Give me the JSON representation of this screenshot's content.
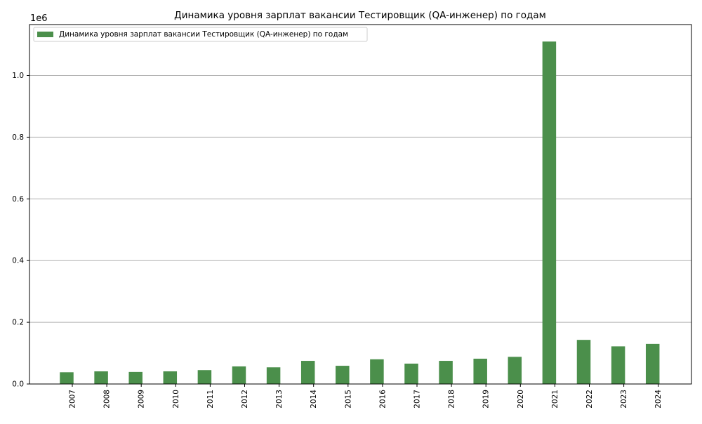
{
  "chart_data": {
    "type": "bar",
    "title": "Динамика уровня зарплат вакансии Тестировщик (QA-инженер) по годам",
    "xlabel": "",
    "ylabel": "",
    "y_scale_label": "1e6",
    "ylim": [
      0,
      1.165
    ],
    "y_ticks": [
      {
        "value": 0.0,
        "label": "0.0"
      },
      {
        "value": 0.2,
        "label": "0.2"
      },
      {
        "value": 0.4,
        "label": "0.4"
      },
      {
        "value": 0.6,
        "label": "0.6"
      },
      {
        "value": 0.8,
        "label": "0.8"
      },
      {
        "value": 1.0,
        "label": "1.0"
      }
    ],
    "grid": "horizontal",
    "legend_position": "top-left",
    "bar_color": "#4b8f4b",
    "categories": [
      "2007",
      "2008",
      "2009",
      "2010",
      "2011",
      "2012",
      "2013",
      "2014",
      "2015",
      "2016",
      "2017",
      "2018",
      "2019",
      "2020",
      "2021",
      "2022",
      "2023",
      "2024"
    ],
    "series": [
      {
        "name": "Динамика уровня зарплат вакансии Тестировщик (QA-инженер) по годам",
        "values": [
          0.038,
          0.041,
          0.039,
          0.041,
          0.045,
          0.057,
          0.054,
          0.075,
          0.059,
          0.08,
          0.066,
          0.075,
          0.082,
          0.088,
          1.11,
          0.143,
          0.122,
          0.13
        ]
      }
    ]
  }
}
